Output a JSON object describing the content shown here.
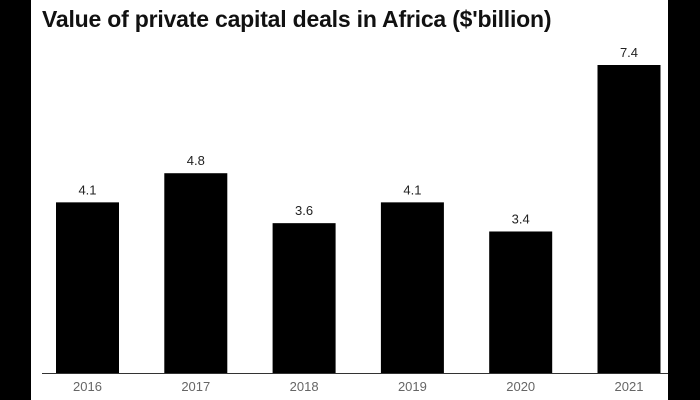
{
  "chart_data": {
    "type": "bar",
    "title": "Value of private capital deals in Africa ($'billion)",
    "categories": [
      "2016",
      "2017",
      "2018",
      "2019",
      "2020",
      "2021"
    ],
    "values": [
      4.1,
      4.8,
      3.6,
      4.1,
      3.4,
      7.4
    ],
    "ylim": [
      0,
      7.4
    ],
    "grid": false,
    "bar_color": "#000000",
    "label_color": "#222222",
    "tick_color": "#666666"
  }
}
